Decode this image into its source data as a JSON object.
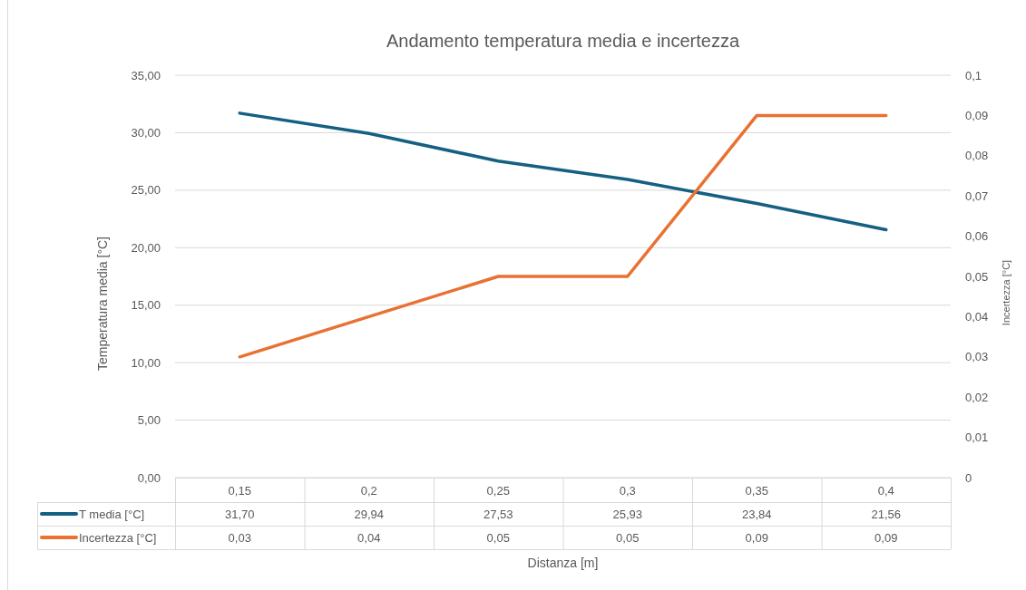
{
  "chart_data": {
    "type": "line",
    "title": "Andamento temperatura media e incertezza",
    "xlabel": "Distanza [m]",
    "ylabel": "Temperatura media [°C]",
    "y2label": "Incertezza [°C]",
    "categories": [
      "0,15",
      "0,2",
      "0,25",
      "0,3",
      "0,35",
      "0,4"
    ],
    "series": [
      {
        "name": "T media [°C]",
        "color": "#156082",
        "values": [
          31.7,
          29.94,
          27.53,
          25.93,
          23.84,
          21.56
        ],
        "value_labels": [
          "31,70",
          "29,94",
          "27,53",
          "25,93",
          "23,84",
          "21,56"
        ]
      },
      {
        "name": "Incertezza [°C]",
        "color": "#e97132",
        "axis": "y2",
        "values": [
          0.03,
          0.04,
          0.05,
          0.05,
          0.09,
          0.09
        ],
        "value_labels": [
          "0,03",
          "0,04",
          "0,05",
          "0,05",
          "0,09",
          "0,09"
        ]
      }
    ],
    "ylim": [
      0,
      35
    ],
    "yticks": [
      {
        "value": 0,
        "label": "0,00"
      },
      {
        "value": 5,
        "label": "5,00"
      },
      {
        "value": 10,
        "label": "10,00"
      },
      {
        "value": 15,
        "label": "15,00"
      },
      {
        "value": 20,
        "label": "20,00"
      },
      {
        "value": 25,
        "label": "25,00"
      },
      {
        "value": 30,
        "label": "30,00"
      },
      {
        "value": 35,
        "label": "35,00"
      }
    ],
    "y2lim": [
      0,
      0.1
    ],
    "y2ticks": [
      0,
      {
        "value": 0.01,
        "label": "0,01"
      },
      {
        "value": 0.02,
        "label": "0,02"
      },
      {
        "value": 0.03,
        "label": "0,03"
      },
      {
        "value": 0.04,
        "label": "0,04"
      },
      {
        "value": 0.05,
        "label": "0,05"
      },
      {
        "value": 0.06,
        "label": "0,06"
      },
      {
        "value": 0.07,
        "label": "0,07"
      },
      {
        "value": 0.08,
        "label": "0,08"
      },
      {
        "value": 0.09,
        "label": "0,09"
      },
      {
        "value": 0.1,
        "label": "0,1"
      }
    ],
    "grid": "y",
    "legend": "bottom"
  }
}
